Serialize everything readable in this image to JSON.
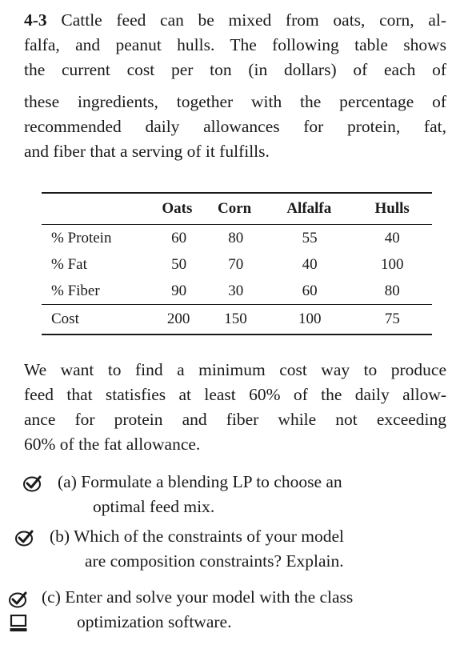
{
  "problem": {
    "number": "4-3",
    "intro_lines": [
      "Cattle feed can be mixed from oats, corn, al-",
      "falfa, and peanut hulls. The following table shows",
      "the current cost per ton (in dollars) of each of",
      "these ingredients, together with the percentage of",
      "recommended daily allowances for protein, fat,",
      "and fiber that a serving of it fulfills."
    ]
  },
  "table": {
    "headers": [
      "",
      "Oats",
      "Corn",
      "Alfalfa",
      "Hulls"
    ],
    "rows": [
      {
        "label": "% Protein",
        "values": [
          "60",
          "80",
          "55",
          "40"
        ]
      },
      {
        "label": "% Fat",
        "values": [
          "50",
          "70",
          "40",
          "100"
        ]
      },
      {
        "label": "% Fiber",
        "values": [
          "90",
          "30",
          "60",
          "80"
        ]
      }
    ],
    "cost_row": {
      "label": "Cost",
      "values": [
        "200",
        "150",
        "100",
        "75"
      ]
    }
  },
  "goal_lines": [
    "We want to find a minimum cost way to produce",
    "feed that statisfies at least 60% of the daily allow-",
    "ance for protein and fiber while not exceeding",
    "60% of the fat allowance."
  ],
  "parts": [
    {
      "label": "(a)",
      "lines": [
        "Formulate a blending LP to choose an",
        "optimal feed mix."
      ]
    },
    {
      "label": "(b)",
      "lines": [
        "Which of the constraints of your model",
        "are composition constraints? Explain."
      ]
    },
    {
      "label": "(c)",
      "lines": [
        "Enter and solve your model with the class",
        "optimization software."
      ]
    }
  ],
  "icons": {
    "check": "checkmark-circle-icon",
    "computer": "computer-icon"
  }
}
